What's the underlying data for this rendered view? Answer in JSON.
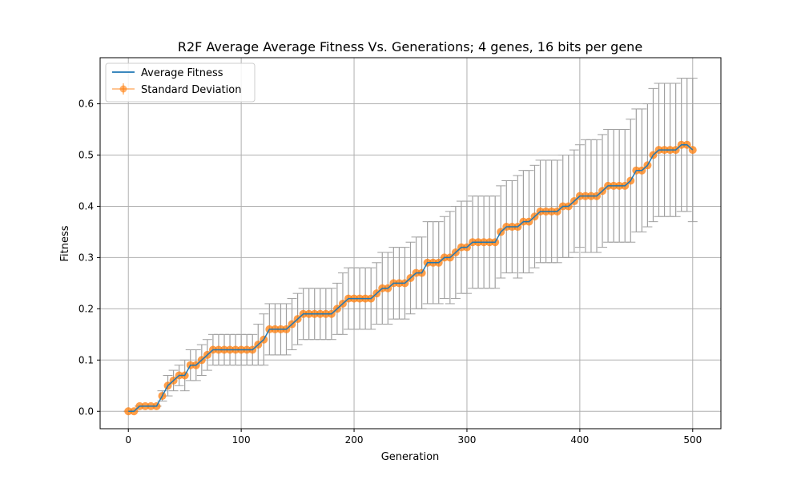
{
  "chart_data": {
    "type": "line",
    "title": "R2F Average Average Fitness Vs. Generations; 4 genes, 16 bits per gene",
    "xlabel": "Generation",
    "ylabel": "Fitness",
    "xlim": [
      -25,
      525
    ],
    "ylim": [
      -0.034,
      0.69
    ],
    "xticks": [
      0,
      100,
      200,
      300,
      400,
      500
    ],
    "xtick_labels": [
      "0",
      "100",
      "200",
      "300",
      "400",
      "500"
    ],
    "yticks": [
      0.0,
      0.1,
      0.2,
      0.3,
      0.4,
      0.5,
      0.6
    ],
    "ytick_labels": [
      "0.0",
      "0.1",
      "0.2",
      "0.3",
      "0.4",
      "0.5",
      "0.6"
    ],
    "grid": true,
    "legend_position": "upper-left",
    "colors": {
      "mean_line": "#1f77b4",
      "markers": "#ff7f0e",
      "errorbars": "#a0a0a0",
      "grid": "#b0b0b0"
    },
    "series": [
      {
        "name": "Average Fitness",
        "style": "line",
        "x": [
          0,
          5,
          10,
          15,
          20,
          25,
          30,
          35,
          40,
          45,
          50,
          55,
          60,
          65,
          70,
          75,
          80,
          85,
          90,
          95,
          100,
          105,
          110,
          115,
          120,
          125,
          130,
          135,
          140,
          145,
          150,
          155,
          160,
          165,
          170,
          175,
          180,
          185,
          190,
          195,
          200,
          205,
          210,
          215,
          220,
          225,
          230,
          235,
          240,
          245,
          250,
          255,
          260,
          265,
          270,
          275,
          280,
          285,
          290,
          295,
          300,
          305,
          310,
          315,
          320,
          325,
          330,
          335,
          340,
          345,
          350,
          355,
          360,
          365,
          370,
          375,
          380,
          385,
          390,
          395,
          400,
          405,
          410,
          415,
          420,
          425,
          430,
          435,
          440,
          445,
          450,
          455,
          460,
          465,
          470,
          475,
          480,
          485,
          490,
          495,
          500
        ],
        "y": [
          0.0,
          0.0,
          0.01,
          0.01,
          0.01,
          0.01,
          0.03,
          0.05,
          0.06,
          0.07,
          0.07,
          0.09,
          0.09,
          0.1,
          0.11,
          0.12,
          0.12,
          0.12,
          0.12,
          0.12,
          0.12,
          0.12,
          0.12,
          0.13,
          0.14,
          0.16,
          0.16,
          0.16,
          0.16,
          0.17,
          0.18,
          0.19,
          0.19,
          0.19,
          0.19,
          0.19,
          0.19,
          0.2,
          0.21,
          0.22,
          0.22,
          0.22,
          0.22,
          0.22,
          0.23,
          0.24,
          0.24,
          0.25,
          0.25,
          0.25,
          0.26,
          0.27,
          0.27,
          0.29,
          0.29,
          0.29,
          0.3,
          0.3,
          0.31,
          0.32,
          0.32,
          0.33,
          0.33,
          0.33,
          0.33,
          0.33,
          0.35,
          0.36,
          0.36,
          0.36,
          0.37,
          0.37,
          0.38,
          0.39,
          0.39,
          0.39,
          0.39,
          0.4,
          0.4,
          0.41,
          0.42,
          0.42,
          0.42,
          0.42,
          0.43,
          0.44,
          0.44,
          0.44,
          0.44,
          0.45,
          0.47,
          0.47,
          0.48,
          0.5,
          0.51,
          0.51,
          0.51,
          0.51,
          0.52,
          0.52,
          0.51
        ]
      },
      {
        "name": "Standard Deviation",
        "style": "errorbar",
        "x": [
          0,
          5,
          10,
          15,
          20,
          25,
          30,
          35,
          40,
          45,
          50,
          55,
          60,
          65,
          70,
          75,
          80,
          85,
          90,
          95,
          100,
          105,
          110,
          115,
          120,
          125,
          130,
          135,
          140,
          145,
          150,
          155,
          160,
          165,
          170,
          175,
          180,
          185,
          190,
          195,
          200,
          205,
          210,
          215,
          220,
          225,
          230,
          235,
          240,
          245,
          250,
          255,
          260,
          265,
          270,
          275,
          280,
          285,
          290,
          295,
          300,
          305,
          310,
          315,
          320,
          325,
          330,
          335,
          340,
          345,
          350,
          355,
          360,
          365,
          370,
          375,
          380,
          385,
          390,
          395,
          400,
          405,
          410,
          415,
          420,
          425,
          430,
          435,
          440,
          445,
          450,
          455,
          460,
          465,
          470,
          475,
          480,
          485,
          490,
          495,
          500
        ],
        "y": [
          0.0,
          0.0,
          0.01,
          0.01,
          0.01,
          0.01,
          0.03,
          0.05,
          0.06,
          0.07,
          0.07,
          0.09,
          0.09,
          0.1,
          0.11,
          0.12,
          0.12,
          0.12,
          0.12,
          0.12,
          0.12,
          0.12,
          0.12,
          0.13,
          0.14,
          0.16,
          0.16,
          0.16,
          0.16,
          0.17,
          0.18,
          0.19,
          0.19,
          0.19,
          0.19,
          0.19,
          0.19,
          0.2,
          0.21,
          0.22,
          0.22,
          0.22,
          0.22,
          0.22,
          0.23,
          0.24,
          0.24,
          0.25,
          0.25,
          0.25,
          0.26,
          0.27,
          0.27,
          0.29,
          0.29,
          0.29,
          0.3,
          0.3,
          0.31,
          0.32,
          0.32,
          0.33,
          0.33,
          0.33,
          0.33,
          0.33,
          0.35,
          0.36,
          0.36,
          0.36,
          0.37,
          0.37,
          0.38,
          0.39,
          0.39,
          0.39,
          0.39,
          0.4,
          0.4,
          0.41,
          0.42,
          0.42,
          0.42,
          0.42,
          0.43,
          0.44,
          0.44,
          0.44,
          0.44,
          0.45,
          0.47,
          0.47,
          0.48,
          0.5,
          0.51,
          0.51,
          0.51,
          0.51,
          0.52,
          0.52,
          0.51
        ],
        "yerr": [
          0.0,
          0.0,
          0.0,
          0.0,
          0.0,
          0.0,
          0.01,
          0.02,
          0.02,
          0.02,
          0.03,
          0.03,
          0.03,
          0.03,
          0.03,
          0.03,
          0.03,
          0.03,
          0.03,
          0.03,
          0.03,
          0.03,
          0.03,
          0.04,
          0.05,
          0.05,
          0.05,
          0.05,
          0.05,
          0.05,
          0.05,
          0.05,
          0.05,
          0.05,
          0.05,
          0.05,
          0.05,
          0.05,
          0.06,
          0.06,
          0.06,
          0.06,
          0.06,
          0.06,
          0.06,
          0.07,
          0.07,
          0.07,
          0.07,
          0.07,
          0.07,
          0.07,
          0.07,
          0.08,
          0.08,
          0.08,
          0.08,
          0.09,
          0.09,
          0.09,
          0.09,
          0.09,
          0.09,
          0.09,
          0.09,
          0.09,
          0.09,
          0.09,
          0.09,
          0.1,
          0.1,
          0.1,
          0.1,
          0.1,
          0.1,
          0.1,
          0.1,
          0.1,
          0.1,
          0.1,
          0.1,
          0.11,
          0.11,
          0.11,
          0.11,
          0.11,
          0.11,
          0.11,
          0.11,
          0.12,
          0.12,
          0.12,
          0.12,
          0.13,
          0.13,
          0.13,
          0.13,
          0.13,
          0.13,
          0.13,
          0.14
        ]
      }
    ]
  }
}
